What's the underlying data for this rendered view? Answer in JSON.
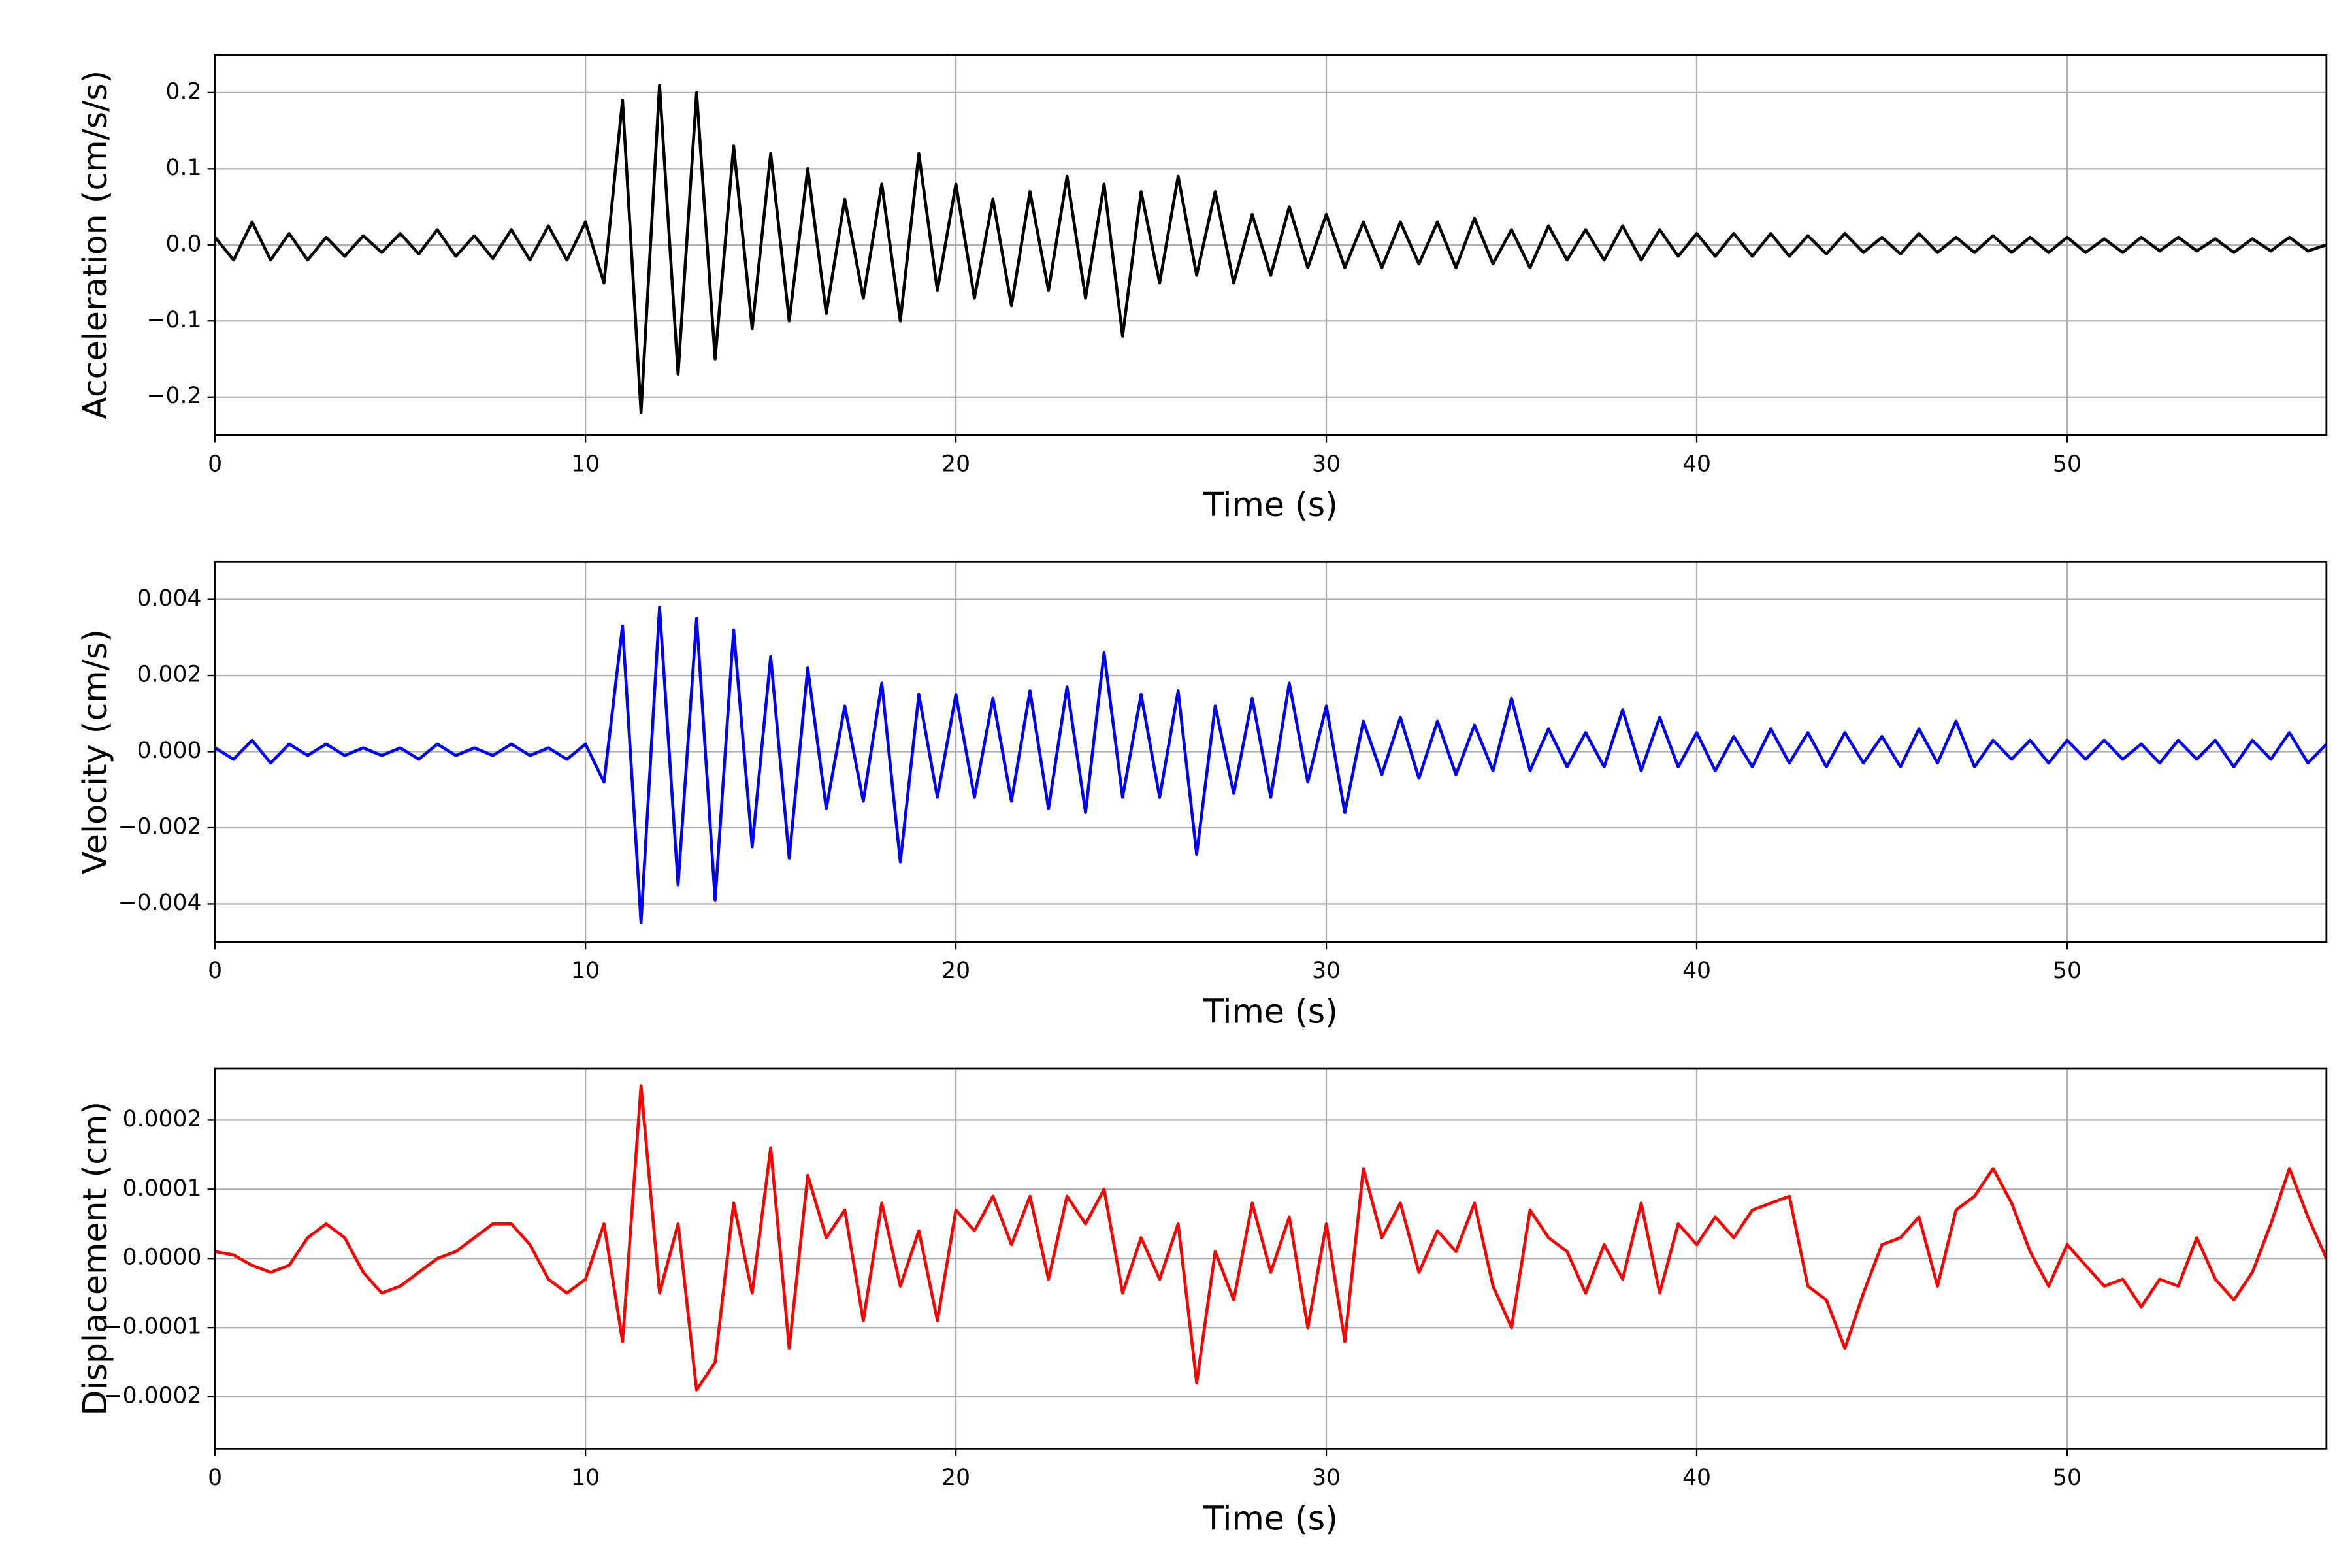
{
  "chart_data": [
    {
      "type": "line",
      "xlabel": "Time (s)",
      "ylabel": "Acceleration (cm/s/s)",
      "color": "#000000",
      "grid": true,
      "xlim": [
        0,
        57
      ],
      "xticks": [
        0,
        10,
        20,
        30,
        40,
        50
      ],
      "ylim": [
        -0.25,
        0.25
      ],
      "yticks": [
        {
          "value": -0.2,
          "label": "−0.2"
        },
        {
          "value": -0.1,
          "label": "−0.1"
        },
        {
          "value": 0,
          "label": "0.0"
        },
        0.1,
        0.2
      ],
      "x": [
        0,
        0.5,
        1,
        1.5,
        2,
        2.5,
        3,
        3.5,
        4,
        4.5,
        5,
        5.5,
        6,
        6.5,
        7,
        7.5,
        8,
        8.5,
        9,
        9.5,
        10,
        10.5,
        11,
        11.5,
        12,
        12.5,
        13,
        13.5,
        14,
        14.5,
        15,
        15.5,
        16,
        16.5,
        17,
        17.5,
        18,
        18.5,
        19,
        19.5,
        20,
        20.5,
        21,
        21.5,
        22,
        22.5,
        23,
        23.5,
        24,
        24.5,
        25,
        25.5,
        26,
        26.5,
        27,
        27.5,
        28,
        28.5,
        29,
        29.5,
        30,
        30.5,
        31,
        31.5,
        32,
        32.5,
        33,
        33.5,
        34,
        34.5,
        35,
        35.5,
        36,
        36.5,
        37,
        37.5,
        38,
        38.5,
        39,
        39.5,
        40,
        40.5,
        41,
        41.5,
        42,
        42.5,
        43,
        43.5,
        44,
        44.5,
        45,
        45.5,
        46,
        46.5,
        47,
        47.5,
        48,
        48.5,
        49,
        49.5,
        50,
        50.5,
        51,
        51.5,
        52,
        52.5,
        53,
        53.5,
        54,
        54.5,
        55,
        55.5,
        56,
        56.5,
        57
      ],
      "values": [
        0.01,
        -0.02,
        0.03,
        -0.02,
        0.015,
        -0.02,
        0.01,
        -0.015,
        0.012,
        -0.01,
        0.015,
        -0.012,
        0.02,
        -0.015,
        0.012,
        -0.018,
        0.02,
        -0.02,
        0.025,
        -0.02,
        0.03,
        -0.05,
        0.19,
        -0.22,
        0.21,
        -0.17,
        0.2,
        -0.15,
        0.13,
        -0.11,
        0.12,
        -0.1,
        0.1,
        -0.09,
        0.06,
        -0.07,
        0.08,
        -0.1,
        0.12,
        -0.06,
        0.08,
        -0.07,
        0.06,
        -0.08,
        0.07,
        -0.06,
        0.09,
        -0.07,
        0.08,
        -0.12,
        0.07,
        -0.05,
        0.09,
        -0.04,
        0.07,
        -0.05,
        0.04,
        -0.04,
        0.05,
        -0.03,
        0.04,
        -0.03,
        0.03,
        -0.03,
        0.03,
        -0.025,
        0.03,
        -0.03,
        0.035,
        -0.025,
        0.02,
        -0.03,
        0.025,
        -0.02,
        0.02,
        -0.02,
        0.025,
        -0.02,
        0.02,
        -0.015,
        0.015,
        -0.015,
        0.015,
        -0.015,
        0.015,
        -0.015,
        0.012,
        -0.012,
        0.015,
        -0.01,
        0.01,
        -0.012,
        0.015,
        -0.01,
        0.01,
        -0.01,
        0.012,
        -0.01,
        0.01,
        -0.01,
        0.01,
        -0.01,
        0.008,
        -0.01,
        0.01,
        -0.008,
        0.01,
        -0.008,
        0.008,
        -0.01,
        0.008,
        -0.008,
        0.01,
        -0.008,
        0
      ]
    },
    {
      "type": "line",
      "xlabel": "Time (s)",
      "ylabel": "Velocity (cm/s)",
      "color": "#0000ff",
      "grid": true,
      "xlim": [
        0,
        57
      ],
      "xticks": [
        0,
        10,
        20,
        30,
        40,
        50
      ],
      "ylim": [
        -0.005,
        0.005
      ],
      "yticks": [
        {
          "value": -0.004,
          "label": "−0.004"
        },
        {
          "value": -0.002,
          "label": "−0.002"
        },
        {
          "value": 0,
          "label": "0.000"
        },
        0.002,
        0.004
      ],
      "x": [
        0,
        0.5,
        1,
        1.5,
        2,
        2.5,
        3,
        3.5,
        4,
        4.5,
        5,
        5.5,
        6,
        6.5,
        7,
        7.5,
        8,
        8.5,
        9,
        9.5,
        10,
        10.5,
        11,
        11.5,
        12,
        12.5,
        13,
        13.5,
        14,
        14.5,
        15,
        15.5,
        16,
        16.5,
        17,
        17.5,
        18,
        18.5,
        19,
        19.5,
        20,
        20.5,
        21,
        21.5,
        22,
        22.5,
        23,
        23.5,
        24,
        24.5,
        25,
        25.5,
        26,
        26.5,
        27,
        27.5,
        28,
        28.5,
        29,
        29.5,
        30,
        30.5,
        31,
        31.5,
        32,
        32.5,
        33,
        33.5,
        34,
        34.5,
        35,
        35.5,
        36,
        36.5,
        37,
        37.5,
        38,
        38.5,
        39,
        39.5,
        40,
        40.5,
        41,
        41.5,
        42,
        42.5,
        43,
        43.5,
        44,
        44.5,
        45,
        45.5,
        46,
        46.5,
        47,
        47.5,
        48,
        48.5,
        49,
        49.5,
        50,
        50.5,
        51,
        51.5,
        52,
        52.5,
        53,
        53.5,
        54,
        54.5,
        55,
        55.5,
        56,
        56.5,
        57
      ],
      "values": [
        0.0001,
        -0.0002,
        0.0003,
        -0.0003,
        0.0002,
        -0.0001,
        0.0002,
        -0.0001,
        0.0001,
        -0.0001,
        0.0001,
        -0.0002,
        0.0002,
        -0.0001,
        0.0001,
        -0.0001,
        0.0002,
        -0.0001,
        0.0001,
        -0.0002,
        0.0002,
        -0.0008,
        0.0033,
        -0.0045,
        0.0038,
        -0.0035,
        0.0035,
        -0.0039,
        0.0032,
        -0.0025,
        0.0025,
        -0.0028,
        0.0022,
        -0.0015,
        0.0012,
        -0.0013,
        0.0018,
        -0.0029,
        0.0015,
        -0.0012,
        0.0015,
        -0.0012,
        0.0014,
        -0.0013,
        0.0016,
        -0.0015,
        0.0017,
        -0.0016,
        0.0026,
        -0.0012,
        0.0015,
        -0.0012,
        0.0016,
        -0.0027,
        0.0012,
        -0.0011,
        0.0014,
        -0.0012,
        0.0018,
        -0.0008,
        0.0012,
        -0.0016,
        0.0008,
        -0.0006,
        0.0009,
        -0.0007,
        0.0008,
        -0.0006,
        0.0007,
        -0.0005,
        0.0014,
        -0.0005,
        0.0006,
        -0.0004,
        0.0005,
        -0.0004,
        0.0011,
        -0.0005,
        0.0009,
        -0.0004,
        0.0005,
        -0.0005,
        0.0004,
        -0.0004,
        0.0006,
        -0.0003,
        0.0005,
        -0.0004,
        0.0005,
        -0.0003,
        0.0004,
        -0.0004,
        0.0006,
        -0.0003,
        0.0008,
        -0.0004,
        0.0003,
        -0.0002,
        0.0003,
        -0.0003,
        0.0003,
        -0.0002,
        0.0003,
        -0.0002,
        0.0002,
        -0.0003,
        0.0003,
        -0.0002,
        0.0003,
        -0.0004,
        0.0003,
        -0.0002,
        0.0005,
        -0.0003,
        0.0002
      ]
    },
    {
      "type": "line",
      "xlabel": "Time (s)",
      "ylabel": "Displacement (cm)",
      "color": "#ff0000",
      "grid": true,
      "xlim": [
        0,
        57
      ],
      "xticks": [
        0,
        10,
        20,
        30,
        40,
        50
      ],
      "ylim": [
        -0.000275,
        0.000275
      ],
      "yticks": [
        {
          "value": -0.0002,
          "label": "−0.0002"
        },
        {
          "value": -0.0001,
          "label": "−0.0001"
        },
        {
          "value": 0,
          "label": "0.0000"
        },
        0.0001,
        0.0002
      ],
      "x": [
        0,
        0.5,
        1,
        1.5,
        2,
        2.5,
        3,
        3.5,
        4,
        4.5,
        5,
        5.5,
        6,
        6.5,
        7,
        7.5,
        8,
        8.5,
        9,
        9.5,
        10,
        10.5,
        11,
        11.5,
        12,
        12.5,
        13,
        13.5,
        14,
        14.5,
        15,
        15.5,
        16,
        16.5,
        17,
        17.5,
        18,
        18.5,
        19,
        19.5,
        20,
        20.5,
        21,
        21.5,
        22,
        22.5,
        23,
        23.5,
        24,
        24.5,
        25,
        25.5,
        26,
        26.5,
        27,
        27.5,
        28,
        28.5,
        29,
        29.5,
        30,
        30.5,
        31,
        31.5,
        32,
        32.5,
        33,
        33.5,
        34,
        34.5,
        35,
        35.5,
        36,
        36.5,
        37,
        37.5,
        38,
        38.5,
        39,
        39.5,
        40,
        40.5,
        41,
        41.5,
        42,
        42.5,
        43,
        43.5,
        44,
        44.5,
        45,
        45.5,
        46,
        46.5,
        47,
        47.5,
        48,
        48.5,
        49,
        49.5,
        50,
        50.5,
        51,
        51.5,
        52,
        52.5,
        53,
        53.5,
        54,
        54.5,
        55,
        55.5,
        56,
        56.5,
        57
      ],
      "values": [
        1e-05,
        5e-06,
        -1e-05,
        -2e-05,
        -1e-05,
        3e-05,
        5e-05,
        3e-05,
        -2e-05,
        -5e-05,
        -4e-05,
        -2e-05,
        0,
        1e-05,
        3e-05,
        5e-05,
        5e-05,
        2e-05,
        -3e-05,
        -5e-05,
        -3e-05,
        5e-05,
        -0.00012,
        0.00025,
        -5e-05,
        5e-05,
        -0.00019,
        -0.00015,
        8e-05,
        -5e-05,
        0.00016,
        -0.00013,
        0.00012,
        3e-05,
        7e-05,
        -9e-05,
        8e-05,
        -4e-05,
        4e-05,
        -9e-05,
        7e-05,
        4e-05,
        9e-05,
        2e-05,
        9e-05,
        -3e-05,
        9e-05,
        5e-05,
        0.0001,
        -5e-05,
        3e-05,
        -3e-05,
        5e-05,
        -0.00018,
        1e-05,
        -6e-05,
        8e-05,
        -2e-05,
        6e-05,
        -0.0001,
        5e-05,
        -0.00012,
        0.00013,
        3e-05,
        8e-05,
        -2e-05,
        4e-05,
        1e-05,
        8e-05,
        -4e-05,
        -0.0001,
        7e-05,
        3e-05,
        1e-05,
        -5e-05,
        2e-05,
        -3e-05,
        8e-05,
        -5e-05,
        5e-05,
        2e-05,
        6e-05,
        3e-05,
        7e-05,
        8e-05,
        9e-05,
        -4e-05,
        -6e-05,
        -0.00013,
        -5e-05,
        2e-05,
        3e-05,
        6e-05,
        -4e-05,
        7e-05,
        9e-05,
        0.00013,
        8e-05,
        1e-05,
        -4e-05,
        2e-05,
        -1e-05,
        -4e-05,
        -3e-05,
        -7e-05,
        -3e-05,
        -4e-05,
        3e-05,
        -3e-05,
        -6e-05,
        -2e-05,
        5e-05,
        0.00013,
        6e-05,
        0
      ]
    }
  ]
}
